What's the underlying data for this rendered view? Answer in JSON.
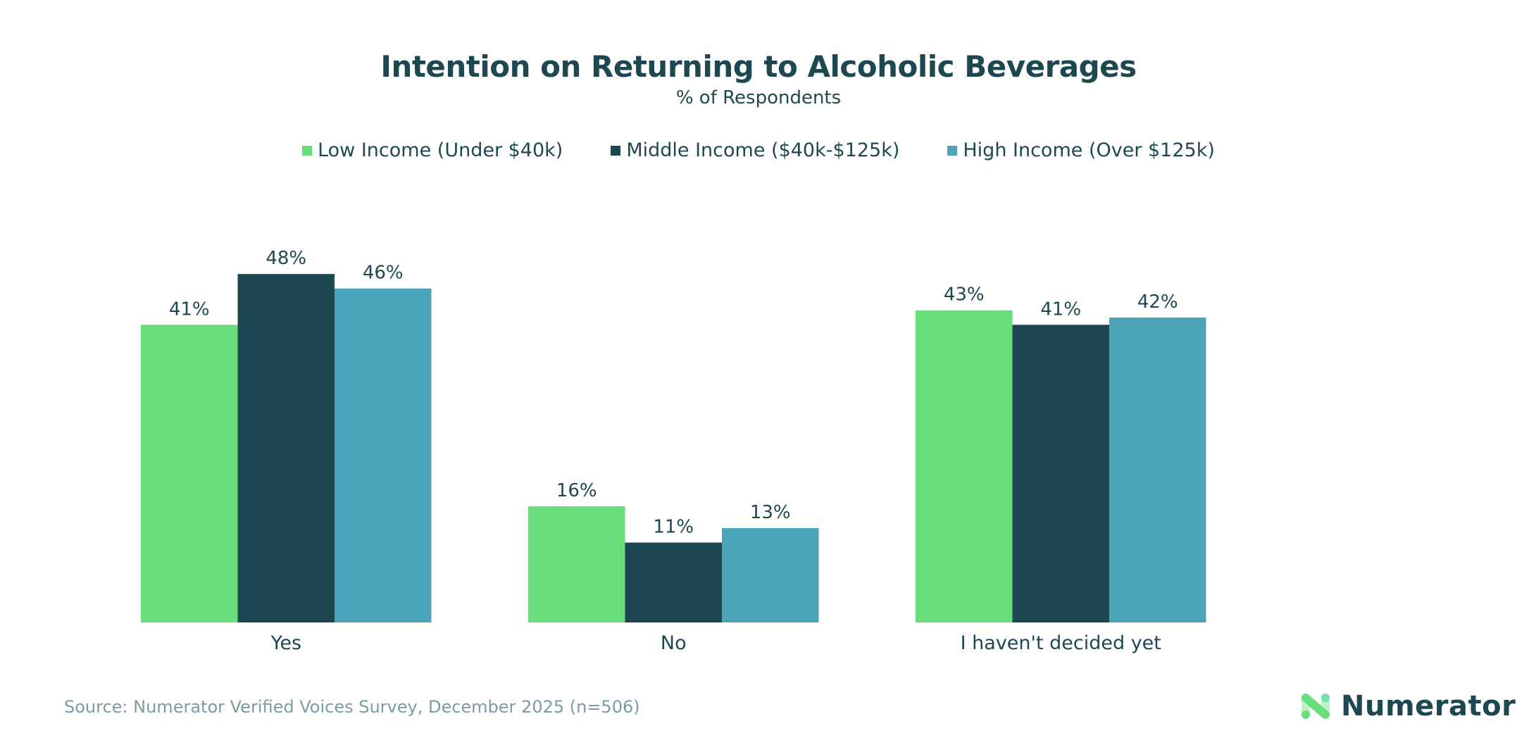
{
  "chart_data": {
    "type": "bar",
    "title": "Intention on Returning to Alcoholic Beverages",
    "subtitle": "% of Respondents",
    "categories": [
      "Yes",
      "No",
      "I haven't decided yet"
    ],
    "series": [
      {
        "name": "Low Income (Under $40k)",
        "color": "#68de7a",
        "values": [
          41,
          16,
          43
        ]
      },
      {
        "name": "Middle Income ($40k-$125k)",
        "color": "#1e4851",
        "values": [
          48,
          11,
          41
        ]
      },
      {
        "name": "High Income (Over $125k)",
        "color": "#4ba4b8",
        "values": [
          46,
          13,
          42
        ]
      }
    ],
    "value_suffix": "%",
    "ylim": [
      0,
      50
    ],
    "grid": false,
    "legend_placement": "top"
  },
  "footer": {
    "source": "Source: Numerator Verified Voices Survey, December 2025 (n=506)",
    "logo_text": "Numerator"
  }
}
